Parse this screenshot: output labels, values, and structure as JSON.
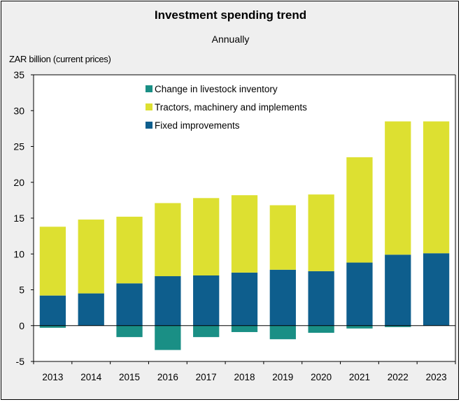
{
  "chart_data": {
    "type": "bar",
    "stacked": true,
    "title": "Investment spending trend",
    "subtitle": "Annually",
    "ylabel": "ZAR billion (current prices)",
    "xlabel": "",
    "categories": [
      "2013",
      "2014",
      "2015",
      "2016",
      "2017",
      "2018",
      "2019",
      "2020",
      "2021",
      "2022",
      "2023"
    ],
    "ylim": [
      -5,
      35
    ],
    "yticks": [
      -5,
      0,
      5,
      10,
      15,
      20,
      25,
      30,
      35
    ],
    "grid": false,
    "legend_position": "top-center",
    "series": [
      {
        "name": "Change in livestock inventory",
        "color": "#1a8f85",
        "values": [
          -0.3,
          0,
          -1.6,
          -3.4,
          -1.6,
          -0.9,
          -1.9,
          -1.0,
          -0.4,
          -0.2,
          0
        ]
      },
      {
        "name": "Tractors, machinery and implements",
        "color": "#dde031",
        "values": [
          9.6,
          10.3,
          9.3,
          10.2,
          10.8,
          10.8,
          9.0,
          10.7,
          14.7,
          18.6,
          18.4
        ]
      },
      {
        "name": "Fixed improvements",
        "color": "#0e5e8d",
        "values": [
          4.2,
          4.5,
          5.9,
          6.9,
          7.0,
          7.4,
          7.8,
          7.6,
          8.8,
          9.9,
          10.1
        ]
      }
    ]
  }
}
